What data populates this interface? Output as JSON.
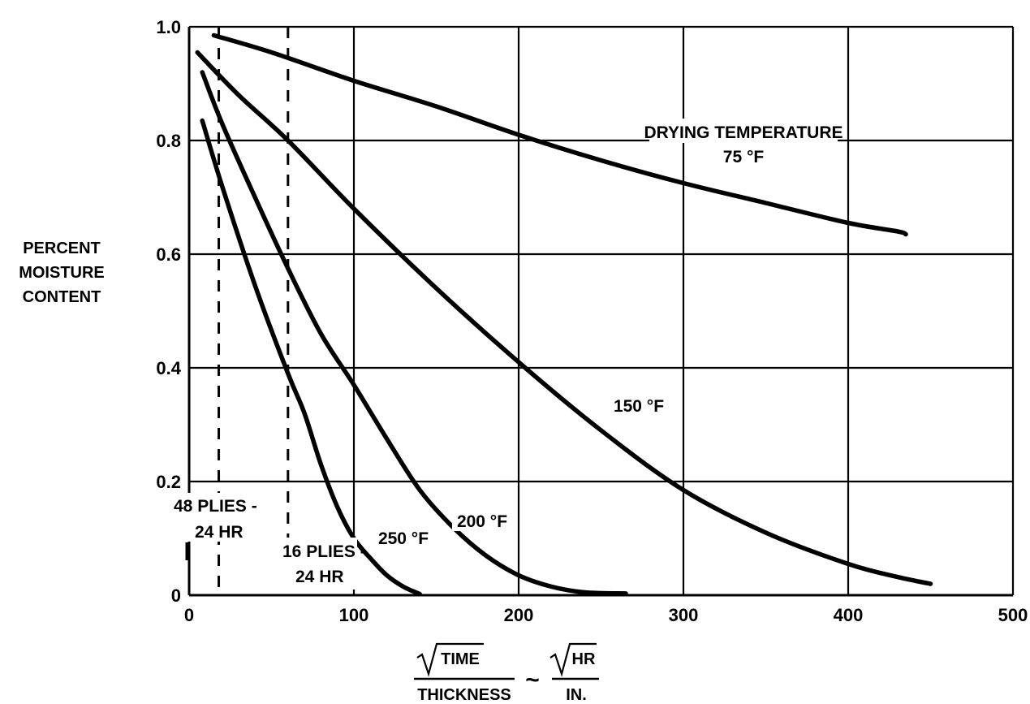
{
  "chart_data": {
    "type": "line",
    "title": "",
    "xlabel": {
      "num_left": "TIME",
      "den_left": "THICKNESS",
      "tilde": "~",
      "num_right": "HR",
      "den_right": "IN."
    },
    "ylabel": [
      "PERCENT",
      "MOISTURE",
      "CONTENT"
    ],
    "xlim": [
      0,
      500
    ],
    "ylim": [
      0,
      1.0
    ],
    "x_ticks": [
      0,
      100,
      200,
      300,
      400,
      500
    ],
    "y_ticks": [
      0,
      0.2,
      0.4,
      0.6,
      0.8,
      1.0
    ],
    "x_tick_labels": [
      "0",
      "100",
      "200",
      "300",
      "400",
      "500"
    ],
    "y_tick_labels": [
      "0",
      "0.2",
      "0.4",
      "0.6",
      "0.8",
      "1.0"
    ],
    "grid": true,
    "series": [
      {
        "name": "75 °F",
        "points": [
          [
            15,
            0.985
          ],
          [
            50,
            0.955
          ],
          [
            100,
            0.905
          ],
          [
            150,
            0.86
          ],
          [
            200,
            0.81
          ],
          [
            250,
            0.765
          ],
          [
            300,
            0.725
          ],
          [
            350,
            0.69
          ],
          [
            400,
            0.655
          ],
          [
            430,
            0.64
          ],
          [
            435,
            0.635
          ]
        ]
      },
      {
        "name": "150 °F",
        "points": [
          [
            5,
            0.955
          ],
          [
            30,
            0.88
          ],
          [
            60,
            0.8
          ],
          [
            100,
            0.68
          ],
          [
            150,
            0.54
          ],
          [
            200,
            0.41
          ],
          [
            250,
            0.29
          ],
          [
            300,
            0.185
          ],
          [
            350,
            0.11
          ],
          [
            400,
            0.055
          ],
          [
            430,
            0.032
          ],
          [
            450,
            0.02
          ]
        ]
      },
      {
        "name": "200 °F",
        "points": [
          [
            8,
            0.92
          ],
          [
            20,
            0.83
          ],
          [
            40,
            0.7
          ],
          [
            60,
            0.575
          ],
          [
            80,
            0.46
          ],
          [
            100,
            0.37
          ],
          [
            120,
            0.275
          ],
          [
            140,
            0.185
          ],
          [
            160,
            0.12
          ],
          [
            180,
            0.07
          ],
          [
            200,
            0.035
          ],
          [
            220,
            0.015
          ],
          [
            240,
            0.005
          ],
          [
            265,
            0.003
          ]
        ]
      },
      {
        "name": "250 °F",
        "points": [
          [
            8,
            0.835
          ],
          [
            20,
            0.72
          ],
          [
            40,
            0.545
          ],
          [
            60,
            0.39
          ],
          [
            70,
            0.32
          ],
          [
            80,
            0.23
          ],
          [
            90,
            0.155
          ],
          [
            100,
            0.1
          ],
          [
            110,
            0.065
          ],
          [
            120,
            0.035
          ],
          [
            130,
            0.015
          ],
          [
            140,
            0.002
          ]
        ]
      }
    ],
    "reference_lines": [
      {
        "x": 18,
        "label": [
          "48 PLIES -",
          "24 HR"
        ]
      },
      {
        "x": 60,
        "label": [
          "16 PLIES -",
          "24 HR"
        ]
      }
    ],
    "annotations": {
      "drying_temperature": "DRYING TEMPERATURE",
      "t75": "75 °F",
      "t150": "150 °F",
      "t200": "200 °F",
      "t250": "250 °F"
    }
  }
}
